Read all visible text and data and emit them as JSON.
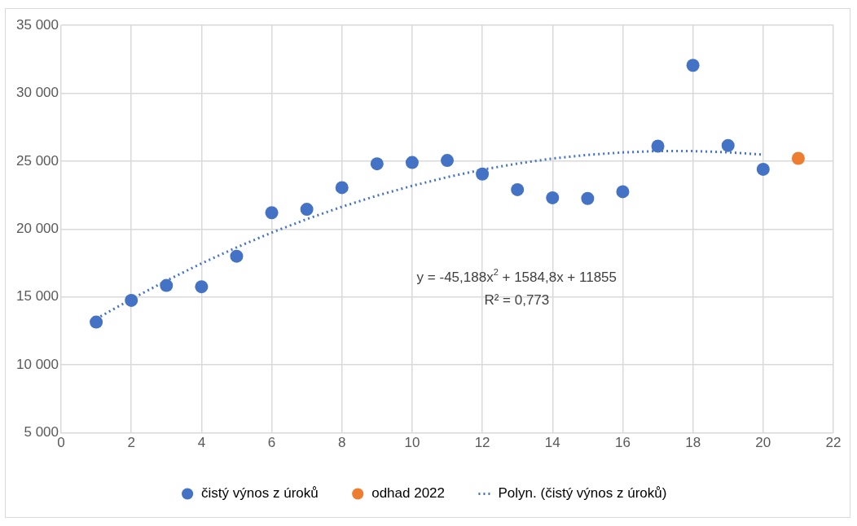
{
  "chart_data": {
    "type": "scatter",
    "xlim": [
      0,
      22
    ],
    "xticks": [
      0,
      2,
      4,
      6,
      8,
      10,
      12,
      14,
      16,
      18,
      20,
      22
    ],
    "ylim": [
      5000,
      35000
    ],
    "yticks": [
      {
        "value": 5000,
        "label": "5 000"
      },
      {
        "value": 10000,
        "label": "10 000"
      },
      {
        "value": 15000,
        "label": "15 000"
      },
      {
        "value": 20000,
        "label": "20 000"
      },
      {
        "value": 25000,
        "label": "25 000"
      },
      {
        "value": 30000,
        "label": "30 000"
      },
      {
        "value": 35000,
        "label": "35 000"
      }
    ],
    "grid": true,
    "legend": "bottom",
    "marker": "circle",
    "series": [
      {
        "name": "čistý výnos z úroků",
        "color": "#4472c4",
        "x": [
          1,
          2,
          3,
          4,
          5,
          6,
          7,
          8,
          9,
          10,
          11,
          12,
          13,
          14,
          15,
          16,
          17,
          18,
          19,
          20
        ],
        "values": [
          13150,
          14750,
          15850,
          15750,
          18000,
          21200,
          21450,
          23050,
          24800,
          24900,
          25050,
          24050,
          22900,
          22300,
          22250,
          22750,
          26100,
          32050,
          26150,
          24400
        ]
      },
      {
        "name": "odhad 2022",
        "color": "#ed7d31",
        "x": [
          21
        ],
        "values": [
          25200
        ]
      },
      {
        "name": "Polyn. (čistý výnos z úroků)",
        "type": "line",
        "color": "#4472c4",
        "marker": "none",
        "line_style": "dotted",
        "x": [
          1,
          2,
          3,
          4,
          5,
          6,
          7,
          8,
          9,
          10,
          11,
          12,
          13,
          14,
          15,
          16,
          17,
          18,
          19,
          20
        ],
        "values": [
          13390,
          14840,
          16200,
          17470,
          18650,
          19740,
          20730,
          21640,
          22460,
          23180,
          23820,
          24370,
          24820,
          25190,
          25460,
          25640,
          25740,
          25740,
          25650,
          25480
        ]
      }
    ],
    "annotations": [
      "y = -45,188x$^{2}$ + 1584,8x + 11855",
      "R² = 0,773"
    ]
  }
}
